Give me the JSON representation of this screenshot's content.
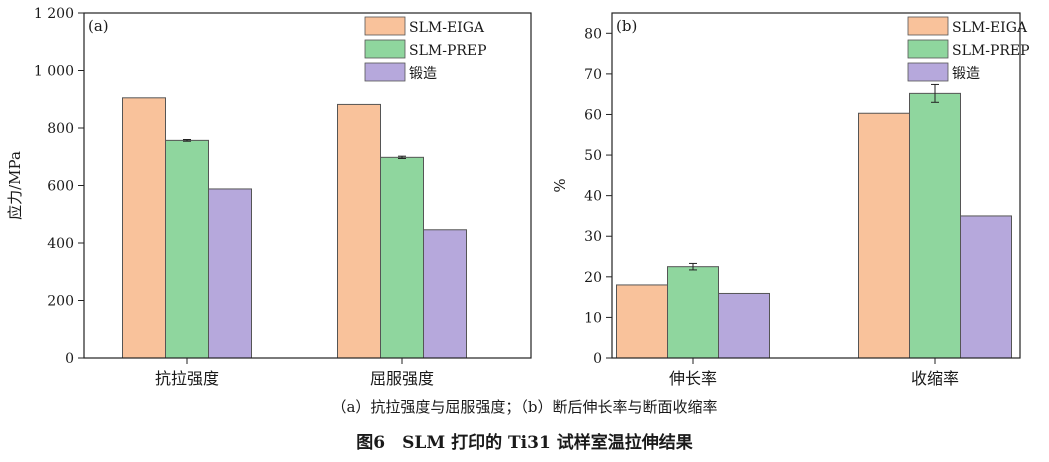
{
  "colors": {
    "SLM-EIGA": "#f9c29b",
    "SLM-PREP": "#8fd69e",
    "锻造": "#b6a8dc",
    "edge": "#555555"
  },
  "chart_data": [
    {
      "type": "bar",
      "panel_label": "(a)",
      "categories": [
        "抗拉强度",
        "屈服强度"
      ],
      "series": [
        {
          "name": "SLM-EIGA",
          "values": [
            905,
            882
          ]
        },
        {
          "name": "SLM-PREP",
          "values": [
            757,
            698
          ],
          "errors": [
            3,
            4
          ]
        },
        {
          "name": "锻造",
          "values": [
            588,
            446
          ]
        }
      ],
      "ylabel": "应力/MPa",
      "ylim": [
        0,
        1200
      ],
      "yticks": [
        0,
        200,
        400,
        600,
        800,
        1000,
        1200
      ],
      "ytick_labels": [
        "0",
        "200",
        "400",
        "600",
        "800",
        "1 000",
        "1 200"
      ],
      "legend_placement": "top-right",
      "grid": false
    },
    {
      "type": "bar",
      "panel_label": "(b)",
      "categories": [
        "伸长率",
        "收缩率"
      ],
      "series": [
        {
          "name": "SLM-EIGA",
          "values": [
            18,
            60.3
          ]
        },
        {
          "name": "SLM-PREP",
          "values": [
            22.5,
            65.2
          ],
          "errors": [
            0.8,
            2.2
          ]
        },
        {
          "name": "锻造",
          "values": [
            15.9,
            35
          ]
        }
      ],
      "ylabel": "%",
      "ylim": [
        0,
        85
      ],
      "yticks": [
        0,
        10,
        20,
        30,
        40,
        50,
        60,
        70,
        80
      ],
      "ytick_labels": [
        "0",
        "10",
        "20",
        "30",
        "40",
        "50",
        "60",
        "70",
        "80"
      ],
      "legend_placement": "top-right",
      "grid": false
    }
  ],
  "caption": {
    "sub": "（a）抗拉强度与屈服强度；（b）断后伸长率与断面收缩率",
    "title": "图6　SLM 打印的 Ti31 试样室温拉伸结果"
  }
}
